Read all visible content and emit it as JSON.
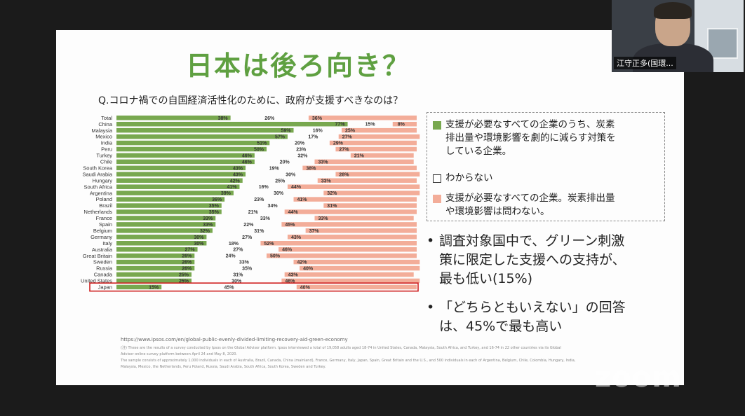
{
  "slide": {
    "title": "日本は後ろ向き？",
    "question": "Q.コロナ禍での自国経済活性化のために、政府が支援すべきなのは？",
    "legend": [
      {
        "text": "支援が必要なすべての企業のうち、炭素\n排出量や環境影響を劇的に減らす対策を\nしている企業。",
        "color": "#78a84f"
      },
      {
        "text": "わからない",
        "color": "#ffffff"
      },
      {
        "text": "支援が必要なすべての企業。炭素排出量\nや環境影響は問わない。",
        "color": "#f3ad99"
      }
    ],
    "bullets": [
      {
        "mark": "•",
        "text": "調査対象国中で、グリーン刺激\n策に限定した支援への支持が、\n最も低い(15%)"
      },
      {
        "mark": "•",
        "text": "「どちらともいえない」の回答\nは、45%で最も高い"
      }
    ],
    "source_url": "https://www.ipsos.com/en/global-public-evenly-divided-limiting-recovery-aid-green-economy",
    "footnote": "(注) These are the results of a survey conducted by Ipsos on the Global Advisor platform. Ipsos interviewed a total of 19,058 adults aged 18-74 in United States, Canada, Malaysia, South Africa, and Turkey, and 16-74 in 22 other countries via its Global\nAdvisor online survey platform between April 24 and May 8, 2020.\nThe sample consists of approximately 1,000 individuals in each of Australia, Brazil, Canada, China (mainland), France, Germany, Italy, Japan, Spain, Great Britain and the U.S., and 500 individuals in each of Argentina, Belgium, Chile, Colombia, Hungary, India,\nMalaysia, Mexico, the Netherlands, Peru Poland, Russia, Saudi Arabia, South Africa, South Korea, Sweden and Turkey."
  },
  "chart_data": {
    "type": "bar",
    "stacked": true,
    "orientation": "horizontal",
    "categories": [
      "Total",
      "China",
      "Malaysia",
      "Mexico",
      "India",
      "Peru",
      "Turkey",
      "Chile",
      "South Korea",
      "Saudi Arabia",
      "Hungary",
      "South Africa",
      "Argentina",
      "Poland",
      "Brazil",
      "Netherlands",
      "France",
      "Spain",
      "Belgium",
      "Germany",
      "Italy",
      "Australia",
      "Great Britain",
      "Sweden",
      "Russia",
      "Canada",
      "United States",
      "Japan"
    ],
    "series": [
      {
        "name": "green",
        "color": "#78a84f",
        "values": [
          38,
          77,
          59,
          57,
          51,
          50,
          46,
          46,
          43,
          43,
          42,
          41,
          39,
          36,
          35,
          35,
          33,
          33,
          32,
          30,
          30,
          27,
          26,
          26,
          26,
          25,
          25,
          15
        ]
      },
      {
        "name": "dont_know",
        "color": "#ffffff",
        "values": [
          26,
          15,
          16,
          17,
          20,
          23,
          32,
          20,
          19,
          30,
          25,
          16,
          30,
          23,
          34,
          21,
          33,
          22,
          31,
          27,
          18,
          27,
          24,
          33,
          35,
          31,
          30,
          45
        ]
      },
      {
        "name": "all_companies",
        "color": "#f3ad99",
        "values": [
          36,
          8,
          25,
          27,
          29,
          27,
          21,
          33,
          38,
          28,
          33,
          44,
          32,
          41,
          31,
          44,
          33,
          45,
          37,
          43,
          52,
          46,
          50,
          42,
          40,
          43,
          46,
          40
        ]
      }
    ],
    "highlight": "Japan",
    "xlim": [
      0,
      100
    ]
  },
  "video": {
    "speaker_name": "江守正多(国環..."
  },
  "zoom": {
    "logo": "zoom"
  }
}
